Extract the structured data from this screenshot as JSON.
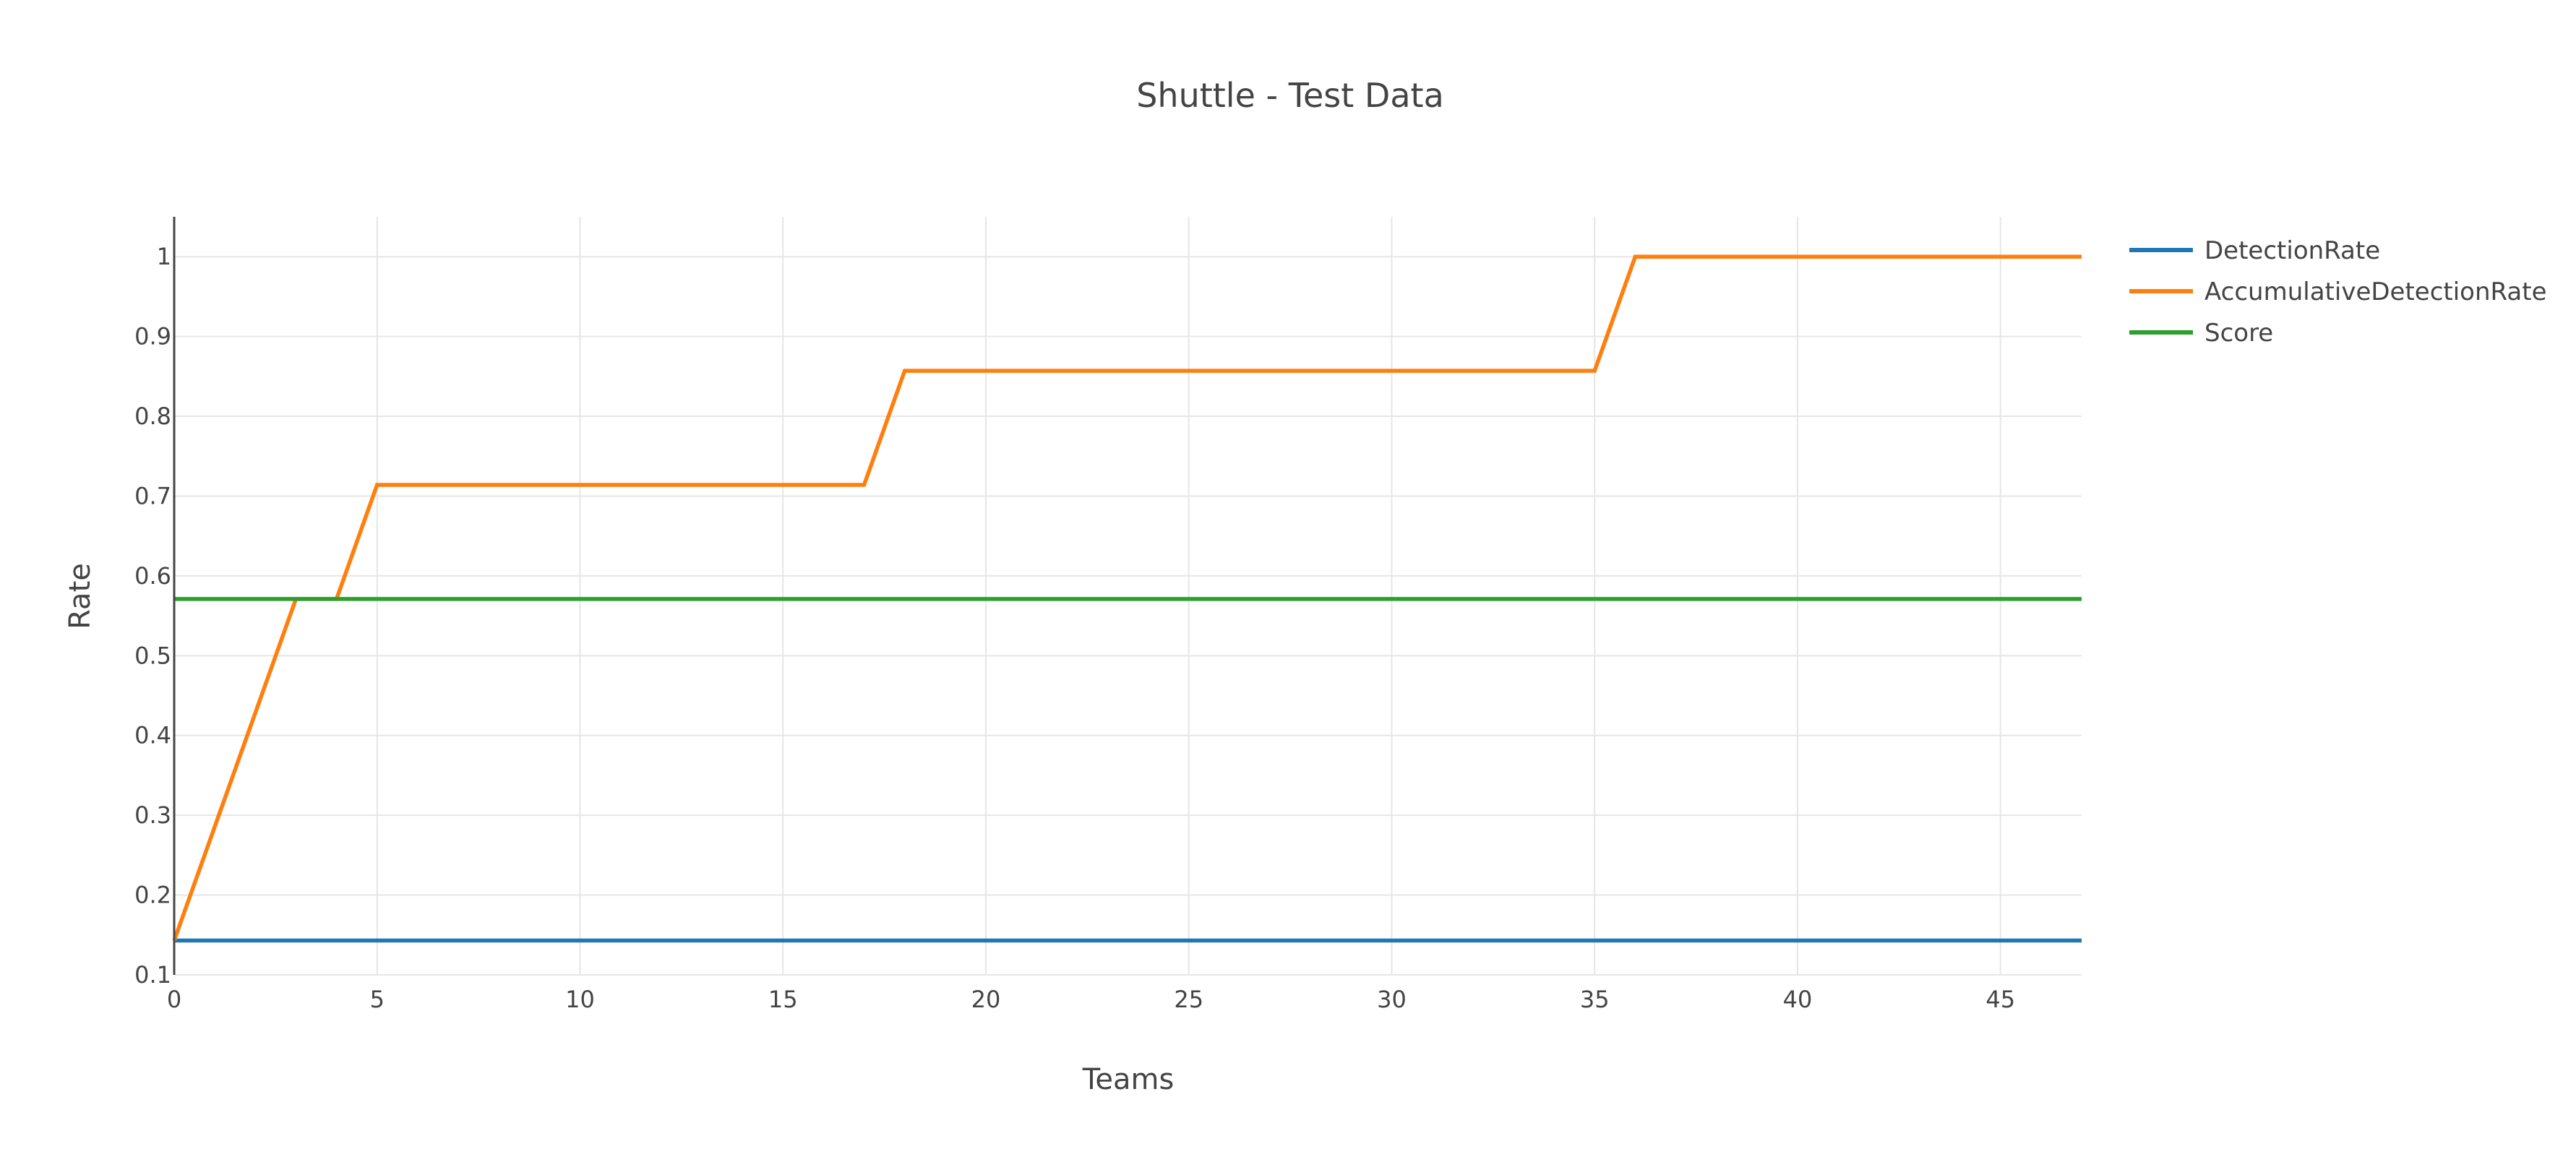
{
  "chart_data": {
    "type": "line",
    "title": "Shuttle - Test Data",
    "xlabel": "Teams",
    "ylabel": "Rate",
    "xlim": [
      0,
      47
    ],
    "ylim": [
      0.1,
      1.05
    ],
    "x_ticks": [
      0,
      5,
      10,
      15,
      20,
      25,
      30,
      35,
      40,
      45
    ],
    "y_ticks": [
      0.1,
      0.2,
      0.3,
      0.4,
      0.5,
      0.6,
      0.7,
      0.8,
      0.9,
      1
    ],
    "y_tick_labels": [
      "0.1",
      "0.2",
      "0.3",
      "0.4",
      "0.5",
      "0.6",
      "0.7",
      "0.8",
      "0.9",
      "1"
    ],
    "grid": true,
    "legend_position": "top-right",
    "series": [
      {
        "name": "DetectionRate",
        "color": "#1f77b4",
        "x": [
          0,
          47
        ],
        "y": [
          0.143,
          0.143
        ]
      },
      {
        "name": "AccumulativeDetectionRate",
        "color": "#ff7f0e",
        "x": [
          0,
          3,
          4,
          5,
          17,
          18,
          35,
          36,
          47
        ],
        "y": [
          0.143,
          0.571,
          0.571,
          0.714,
          0.714,
          0.857,
          0.857,
          1.0,
          1.0
        ]
      },
      {
        "name": "Score",
        "color": "#2ca02c",
        "x": [
          0,
          47
        ],
        "y": [
          0.571,
          0.571
        ]
      }
    ]
  }
}
